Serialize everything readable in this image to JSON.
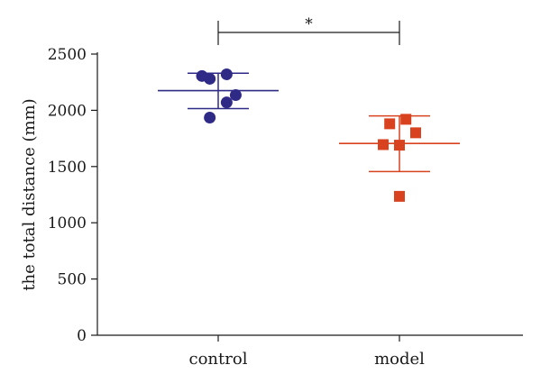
{
  "chart_data": {
    "type": "scatter",
    "ylabel": "the total distance (mm)",
    "ylim": [
      0,
      2500
    ],
    "yticks": [
      0,
      500,
      1000,
      1500,
      2000,
      2500
    ],
    "categories": [
      "control",
      "model"
    ],
    "grid": false,
    "series": [
      {
        "category": "control",
        "color": "#2e2a86",
        "marker": "circle",
        "mean": 2175,
        "sd_low": 2015,
        "sd_high": 2330,
        "points": [
          {
            "offset": -0.25,
            "y": 2305
          },
          {
            "offset": -0.13,
            "y": 2280
          },
          {
            "offset": 0.13,
            "y": 2320
          },
          {
            "offset": 0.27,
            "y": 2135
          },
          {
            "offset": 0.13,
            "y": 2070
          },
          {
            "offset": -0.13,
            "y": 1935
          }
        ]
      },
      {
        "category": "model",
        "color": "#d9421f",
        "marker": "square",
        "mean": 1705,
        "sd_low": 1455,
        "sd_high": 1950,
        "points": [
          {
            "offset": -0.15,
            "y": 1880
          },
          {
            "offset": 0.1,
            "y": 1920
          },
          {
            "offset": 0.25,
            "y": 1800
          },
          {
            "offset": -0.25,
            "y": 1695
          },
          {
            "offset": 0.0,
            "y": 1690
          },
          {
            "offset": 0.0,
            "y": 1235
          }
        ]
      }
    ],
    "significance": {
      "between": [
        "control",
        "model"
      ],
      "label": "*"
    }
  }
}
